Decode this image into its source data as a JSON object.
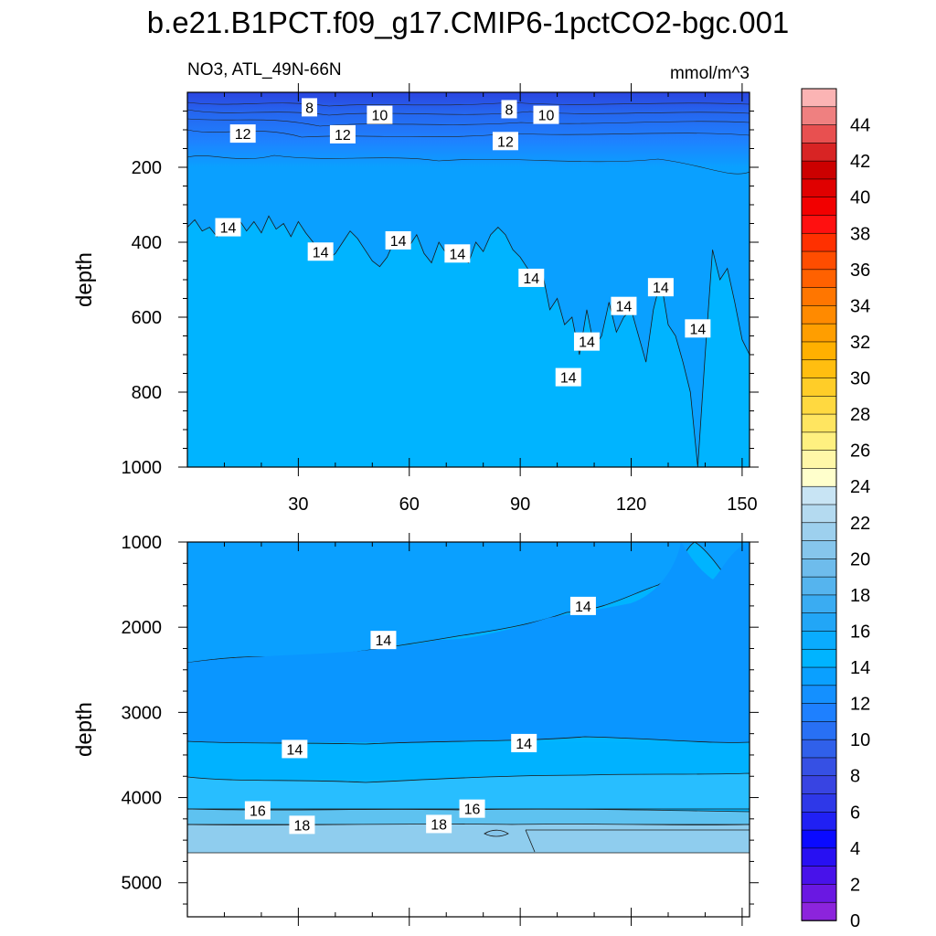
{
  "title": "b.e21.B1PCT.f09_g17.CMIP6-1pctCO2-bgc.001",
  "subtitle_left": "NO3, ATL_49N-66N",
  "subtitle_right": "mmol/m^3",
  "chart_data": [
    {
      "type": "heatmap",
      "panel": "upper",
      "ylabel": "depth",
      "xlabel": "",
      "xlim": [
        0,
        152
      ],
      "ylim": [
        1000,
        0
      ],
      "x_ticks": [
        30,
        60,
        90,
        120,
        150
      ],
      "x_tick_labels": [
        "30",
        "60",
        "90",
        "120",
        "150"
      ],
      "y_ticks": [
        200,
        400,
        600,
        800,
        1000
      ],
      "y_tick_labels": [
        "200",
        "400",
        "600",
        "800",
        "1000"
      ],
      "contour_labels": [
        {
          "text": "8",
          "x": 33,
          "y": 40
        },
        {
          "text": "10",
          "x": 52,
          "y": 60
        },
        {
          "text": "8",
          "x": 87,
          "y": 45
        },
        {
          "text": "10",
          "x": 97,
          "y": 60
        },
        {
          "text": "12",
          "x": 15,
          "y": 110
        },
        {
          "text": "12",
          "x": 42,
          "y": 112
        },
        {
          "text": "12",
          "x": 86,
          "y": 130
        },
        {
          "text": "14",
          "x": 11,
          "y": 360
        },
        {
          "text": "14",
          "x": 36,
          "y": 425
        },
        {
          "text": "14",
          "x": 57,
          "y": 395
        },
        {
          "text": "14",
          "x": 73,
          "y": 430
        },
        {
          "text": "14",
          "x": 93,
          "y": 495
        },
        {
          "text": "14",
          "x": 108,
          "y": 665
        },
        {
          "text": "14",
          "x": 103,
          "y": 760
        },
        {
          "text": "14",
          "x": 118,
          "y": 570
        },
        {
          "text": "14",
          "x": 128,
          "y": 520
        },
        {
          "text": "14",
          "x": 138,
          "y": 630
        }
      ],
      "iso14_boundary": [
        [
          0,
          360
        ],
        [
          2,
          340
        ],
        [
          4,
          370
        ],
        [
          6,
          360
        ],
        [
          8,
          385
        ],
        [
          10,
          350
        ],
        [
          12,
          380
        ],
        [
          14,
          340
        ],
        [
          16,
          370
        ],
        [
          18,
          345
        ],
        [
          20,
          375
        ],
        [
          22,
          330
        ],
        [
          24,
          365
        ],
        [
          26,
          350
        ],
        [
          28,
          385
        ],
        [
          30,
          345
        ],
        [
          32,
          375
        ],
        [
          34,
          400
        ],
        [
          36,
          420
        ],
        [
          38,
          445
        ],
        [
          40,
          430
        ],
        [
          42,
          400
        ],
        [
          44,
          370
        ],
        [
          46,
          390
        ],
        [
          48,
          420
        ],
        [
          50,
          450
        ],
        [
          52,
          465
        ],
        [
          54,
          440
        ],
        [
          56,
          395
        ],
        [
          58,
          380
        ],
        [
          60,
          410
        ],
        [
          62,
          380
        ],
        [
          64,
          430
        ],
        [
          66,
          455
        ],
        [
          68,
          400
        ],
        [
          70,
          430
        ],
        [
          72,
          410
        ],
        [
          74,
          440
        ],
        [
          76,
          455
        ],
        [
          78,
          400
        ],
        [
          80,
          425
        ],
        [
          82,
          380
        ],
        [
          84,
          360
        ],
        [
          86,
          380
        ],
        [
          88,
          420
        ],
        [
          90,
          440
        ],
        [
          92,
          470
        ],
        [
          94,
          500
        ],
        [
          96,
          480
        ],
        [
          98,
          580
        ],
        [
          100,
          550
        ],
        [
          102,
          620
        ],
        [
          104,
          600
        ],
        [
          106,
          700
        ],
        [
          108,
          580
        ],
        [
          110,
          680
        ],
        [
          112,
          650
        ],
        [
          114,
          560
        ],
        [
          116,
          640
        ],
        [
          118,
          600
        ],
        [
          120,
          580
        ],
        [
          122,
          650
        ],
        [
          124,
          720
        ],
        [
          126,
          580
        ],
        [
          128,
          500
        ],
        [
          130,
          620
        ],
        [
          132,
          650
        ],
        [
          134,
          720
        ],
        [
          136,
          800
        ],
        [
          138,
          1000
        ],
        [
          140,
          700
        ],
        [
          142,
          420
        ],
        [
          144,
          500
        ],
        [
          146,
          470
        ],
        [
          148,
          560
        ],
        [
          150,
          660
        ],
        [
          152,
          700
        ]
      ]
    },
    {
      "type": "heatmap",
      "panel": "lower",
      "ylabel": "depth",
      "xlabel": "",
      "xlim": [
        0,
        152
      ],
      "ylim": [
        5400,
        1000
      ],
      "x_ticks": [
        30,
        60,
        90,
        120,
        150
      ],
      "y_ticks": [
        1000,
        2000,
        3000,
        4000,
        5000
      ],
      "y_tick_labels": [
        "1000",
        "2000",
        "3000",
        "4000",
        "5000"
      ],
      "bottom_of_data": 4620,
      "contour_labels": [
        {
          "text": "14",
          "x": 107,
          "y": 1750
        },
        {
          "text": "14",
          "x": 53,
          "y": 2150
        },
        {
          "text": "14",
          "x": 29,
          "y": 3430
        },
        {
          "text": "14",
          "x": 91,
          "y": 3360
        },
        {
          "text": "16",
          "x": 19,
          "y": 4150
        },
        {
          "text": "16",
          "x": 77,
          "y": 4130
        },
        {
          "text": "18",
          "x": 31,
          "y": 4320
        },
        {
          "text": "18",
          "x": 68,
          "y": 4310
        }
      ]
    }
  ],
  "colorbar": {
    "labels": [
      "44",
      "42",
      "40",
      "38",
      "36",
      "34",
      "32",
      "30",
      "28",
      "26",
      "24",
      "22",
      "20",
      "18",
      "16",
      "14",
      "12",
      "10",
      "8",
      "6",
      "4",
      "2",
      "0"
    ],
    "colors_top_to_bottom": [
      "#fbb4b4",
      "#ef8080",
      "#e85050",
      "#d82424",
      "#cc0000",
      "#e00000",
      "#f20000",
      "#ff1010",
      "#ff3000",
      "#ff4d00",
      "#ff6100",
      "#ff7600",
      "#ff8a00",
      "#ff9e00",
      "#ffb000",
      "#ffbe10",
      "#ffcd28",
      "#ffd940",
      "#ffe560",
      "#fff080",
      "#fff7a8",
      "#ffffcc",
      "#c8e4f4",
      "#b4daf0",
      "#9dd0ee",
      "#86c6ec",
      "#6ebcec",
      "#55b4ee",
      "#3aacf2",
      "#22a6f6",
      "#0aacfe",
      "#00b4ff",
      "#0aa0ff",
      "#1490ff",
      "#1e80ff",
      "#2870f4",
      "#3060ea",
      "#3650e4",
      "#3844e2",
      "#2e38e8",
      "#2020f4",
      "#0a0aff",
      "#2810f2",
      "#4812ea",
      "#6a18e2",
      "#8c24dc"
    ]
  }
}
